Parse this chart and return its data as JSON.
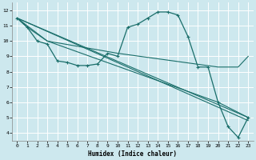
{
  "xlabel": "Humidex (Indice chaleur)",
  "bg_color": "#cde8ee",
  "grid_color": "#ffffff",
  "line_color": "#1a6e6a",
  "xlim": [
    -0.5,
    23.5
  ],
  "ylim": [
    3.5,
    12.5
  ],
  "xtick_labels": [
    "0",
    "1",
    "2",
    "3",
    "4",
    "5",
    "6",
    "7",
    "8",
    "9",
    "10",
    "11",
    "12",
    "13",
    "14",
    "15",
    "16",
    "17",
    "18",
    "19",
    "20",
    "21",
    "22",
    "23"
  ],
  "xtick_pos": [
    0,
    1,
    2,
    3,
    4,
    5,
    6,
    7,
    8,
    9,
    10,
    11,
    12,
    13,
    14,
    15,
    16,
    17,
    18,
    19,
    20,
    21,
    22,
    23
  ],
  "ytick_pos": [
    4,
    5,
    6,
    7,
    8,
    9,
    10,
    11,
    12
  ],
  "ytick_labels": [
    "4",
    "5",
    "6",
    "7",
    "8",
    "9",
    "10",
    "11",
    "12"
  ],
  "line_main_x": [
    0,
    1,
    2,
    3,
    4,
    5,
    6,
    7,
    8,
    9,
    10,
    11,
    12,
    13,
    14,
    15,
    16,
    17,
    18,
    19,
    20,
    21,
    22,
    23
  ],
  "line_main_y": [
    11.5,
    10.9,
    10.0,
    9.8,
    8.7,
    8.6,
    8.4,
    8.4,
    8.5,
    9.2,
    9.0,
    10.9,
    11.1,
    11.5,
    11.9,
    11.9,
    11.7,
    10.3,
    8.3,
    8.3,
    6.0,
    4.4,
    3.7,
    5.0
  ],
  "line2_x": [
    0,
    1,
    3,
    10,
    20,
    22,
    23
  ],
  "line2_y": [
    11.5,
    10.9,
    10.0,
    9.2,
    8.3,
    8.3,
    9.0
  ],
  "line3_x": [
    0,
    3,
    20,
    23
  ],
  "line3_y": [
    11.5,
    10.0,
    6.0,
    5.0
  ],
  "line4_x": [
    0,
    23
  ],
  "line4_y": [
    11.5,
    5.0
  ],
  "line5_x": [
    0,
    23
  ],
  "line5_y": [
    11.5,
    4.8
  ]
}
